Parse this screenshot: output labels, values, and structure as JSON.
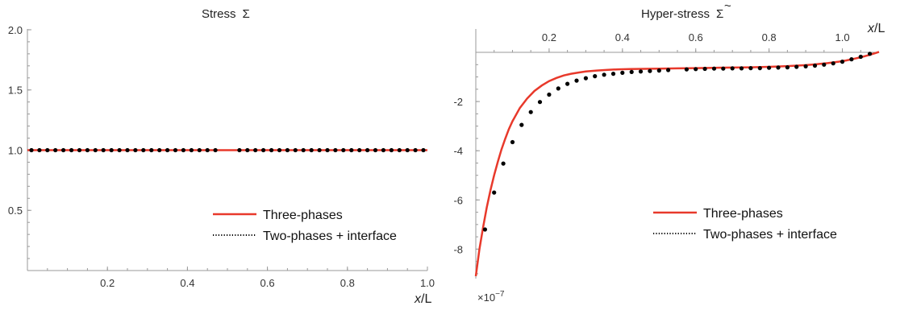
{
  "chart_data": [
    {
      "type": "line",
      "title": "Stress",
      "title_symbol": "Σ",
      "xlabel_var": "x",
      "xlabel_unit": "/L",
      "xlim": [
        0,
        1.0
      ],
      "ylim": [
        0,
        2.1
      ],
      "xticks": [
        0.2,
        0.4,
        0.6,
        0.8,
        1.0
      ],
      "xtick_labels": [
        "0.2",
        "0.4",
        "0.6",
        "0.8",
        "1.0"
      ],
      "yticks": [
        0.5,
        1.0,
        1.5,
        2.0
      ],
      "ytick_labels": [
        "0.5",
        "1.0",
        "1.5",
        "2.0"
      ],
      "legend_position": "bottom-right",
      "series": [
        {
          "name": "Three-phases",
          "style": "solid",
          "color": "#e8392b",
          "x": [
            0,
            1.0
          ],
          "y": [
            1.0,
            1.0
          ]
        },
        {
          "name": "Two-phases + interface",
          "style": "dotted",
          "color": "#000000",
          "x": [
            0.01,
            0.03,
            0.05,
            0.07,
            0.09,
            0.11,
            0.13,
            0.15,
            0.17,
            0.19,
            0.21,
            0.23,
            0.25,
            0.27,
            0.29,
            0.31,
            0.33,
            0.35,
            0.37,
            0.39,
            0.41,
            0.43,
            0.45,
            0.47,
            0.53,
            0.55,
            0.57,
            0.59,
            0.61,
            0.63,
            0.65,
            0.67,
            0.69,
            0.71,
            0.73,
            0.75,
            0.77,
            0.79,
            0.81,
            0.83,
            0.85,
            0.87,
            0.89,
            0.91,
            0.93,
            0.95,
            0.97,
            0.99
          ],
          "y": [
            1,
            1,
            1,
            1,
            1,
            1,
            1,
            1,
            1,
            1,
            1,
            1,
            1,
            1,
            1,
            1,
            1,
            1,
            1,
            1,
            1,
            1,
            1,
            1,
            1,
            1,
            1,
            1,
            1,
            1,
            1,
            1,
            1,
            1,
            1,
            1,
            1,
            1,
            1,
            1,
            1,
            1,
            1,
            1,
            1,
            1,
            1,
            1
          ]
        }
      ]
    },
    {
      "type": "line",
      "title": "Hyper-stress",
      "title_symbol": "Σ",
      "title_accent": "~",
      "xlabel_var": "x",
      "xlabel_unit": "/L",
      "xlim": [
        0,
        1.1
      ],
      "ylim": [
        -9.1,
        0.5
      ],
      "y_multiplier": "×10",
      "y_multiplier_exp": "−7",
      "xticks": [
        0.2,
        0.4,
        0.6,
        0.8,
        1.0
      ],
      "xtick_labels": [
        "0.2",
        "0.4",
        "0.6",
        "0.8",
        "1.0"
      ],
      "yticks": [
        -2,
        -4,
        -6,
        -8
      ],
      "ytick_labels": [
        "-2",
        "-4",
        "-6",
        "-8"
      ],
      "legend_position": "bottom-right",
      "series": [
        {
          "name": "Three-phases",
          "style": "solid",
          "color": "#e8392b",
          "x": [
            0,
            0.01,
            0.02,
            0.03,
            0.04,
            0.05,
            0.06,
            0.07,
            0.08,
            0.09,
            0.1,
            0.12,
            0.14,
            0.16,
            0.18,
            0.2,
            0.22,
            0.24,
            0.26,
            0.28,
            0.3,
            0.33,
            0.36,
            0.39,
            0.42,
            0.46,
            0.5,
            0.55,
            0.6,
            0.65,
            0.7,
            0.75,
            0.8,
            0.85,
            0.9,
            0.93,
            0.96,
            0.99,
            1.01,
            1.03,
            1.05,
            1.07,
            1.09,
            1.1
          ],
          "y": [
            -9.1,
            -8.0,
            -7.1,
            -6.3,
            -5.6,
            -5.0,
            -4.45,
            -3.95,
            -3.52,
            -3.13,
            -2.8,
            -2.27,
            -1.88,
            -1.57,
            -1.35,
            -1.17,
            -1.04,
            -0.94,
            -0.87,
            -0.82,
            -0.78,
            -0.74,
            -0.71,
            -0.69,
            -0.68,
            -0.67,
            -0.66,
            -0.65,
            -0.64,
            -0.63,
            -0.62,
            -0.61,
            -0.59,
            -0.56,
            -0.52,
            -0.48,
            -0.44,
            -0.38,
            -0.33,
            -0.27,
            -0.2,
            -0.12,
            -0.03,
            0.02
          ]
        },
        {
          "name": "Two-phases + interface",
          "style": "dotted",
          "color": "#000000",
          "x": [
            0.025,
            0.05,
            0.075,
            0.1,
            0.125,
            0.15,
            0.175,
            0.2,
            0.225,
            0.25,
            0.275,
            0.3,
            0.325,
            0.35,
            0.375,
            0.4,
            0.425,
            0.45,
            0.475,
            0.5,
            0.525,
            0.575,
            0.6,
            0.625,
            0.65,
            0.675,
            0.7,
            0.725,
            0.75,
            0.775,
            0.8,
            0.825,
            0.85,
            0.875,
            0.9,
            0.925,
            0.95,
            0.975,
            1.0,
            1.025,
            1.05,
            1.075
          ],
          "y": [
            -7.2,
            -5.7,
            -4.52,
            -3.65,
            -2.95,
            -2.43,
            -2.02,
            -1.72,
            -1.47,
            -1.28,
            -1.15,
            -1.05,
            -0.97,
            -0.91,
            -0.87,
            -0.83,
            -0.8,
            -0.78,
            -0.76,
            -0.74,
            -0.72,
            -0.69,
            -0.68,
            -0.67,
            -0.66,
            -0.66,
            -0.65,
            -0.65,
            -0.64,
            -0.64,
            -0.63,
            -0.62,
            -0.61,
            -0.59,
            -0.57,
            -0.54,
            -0.5,
            -0.45,
            -0.38,
            -0.28,
            -0.18,
            -0.06
          ]
        }
      ]
    }
  ]
}
